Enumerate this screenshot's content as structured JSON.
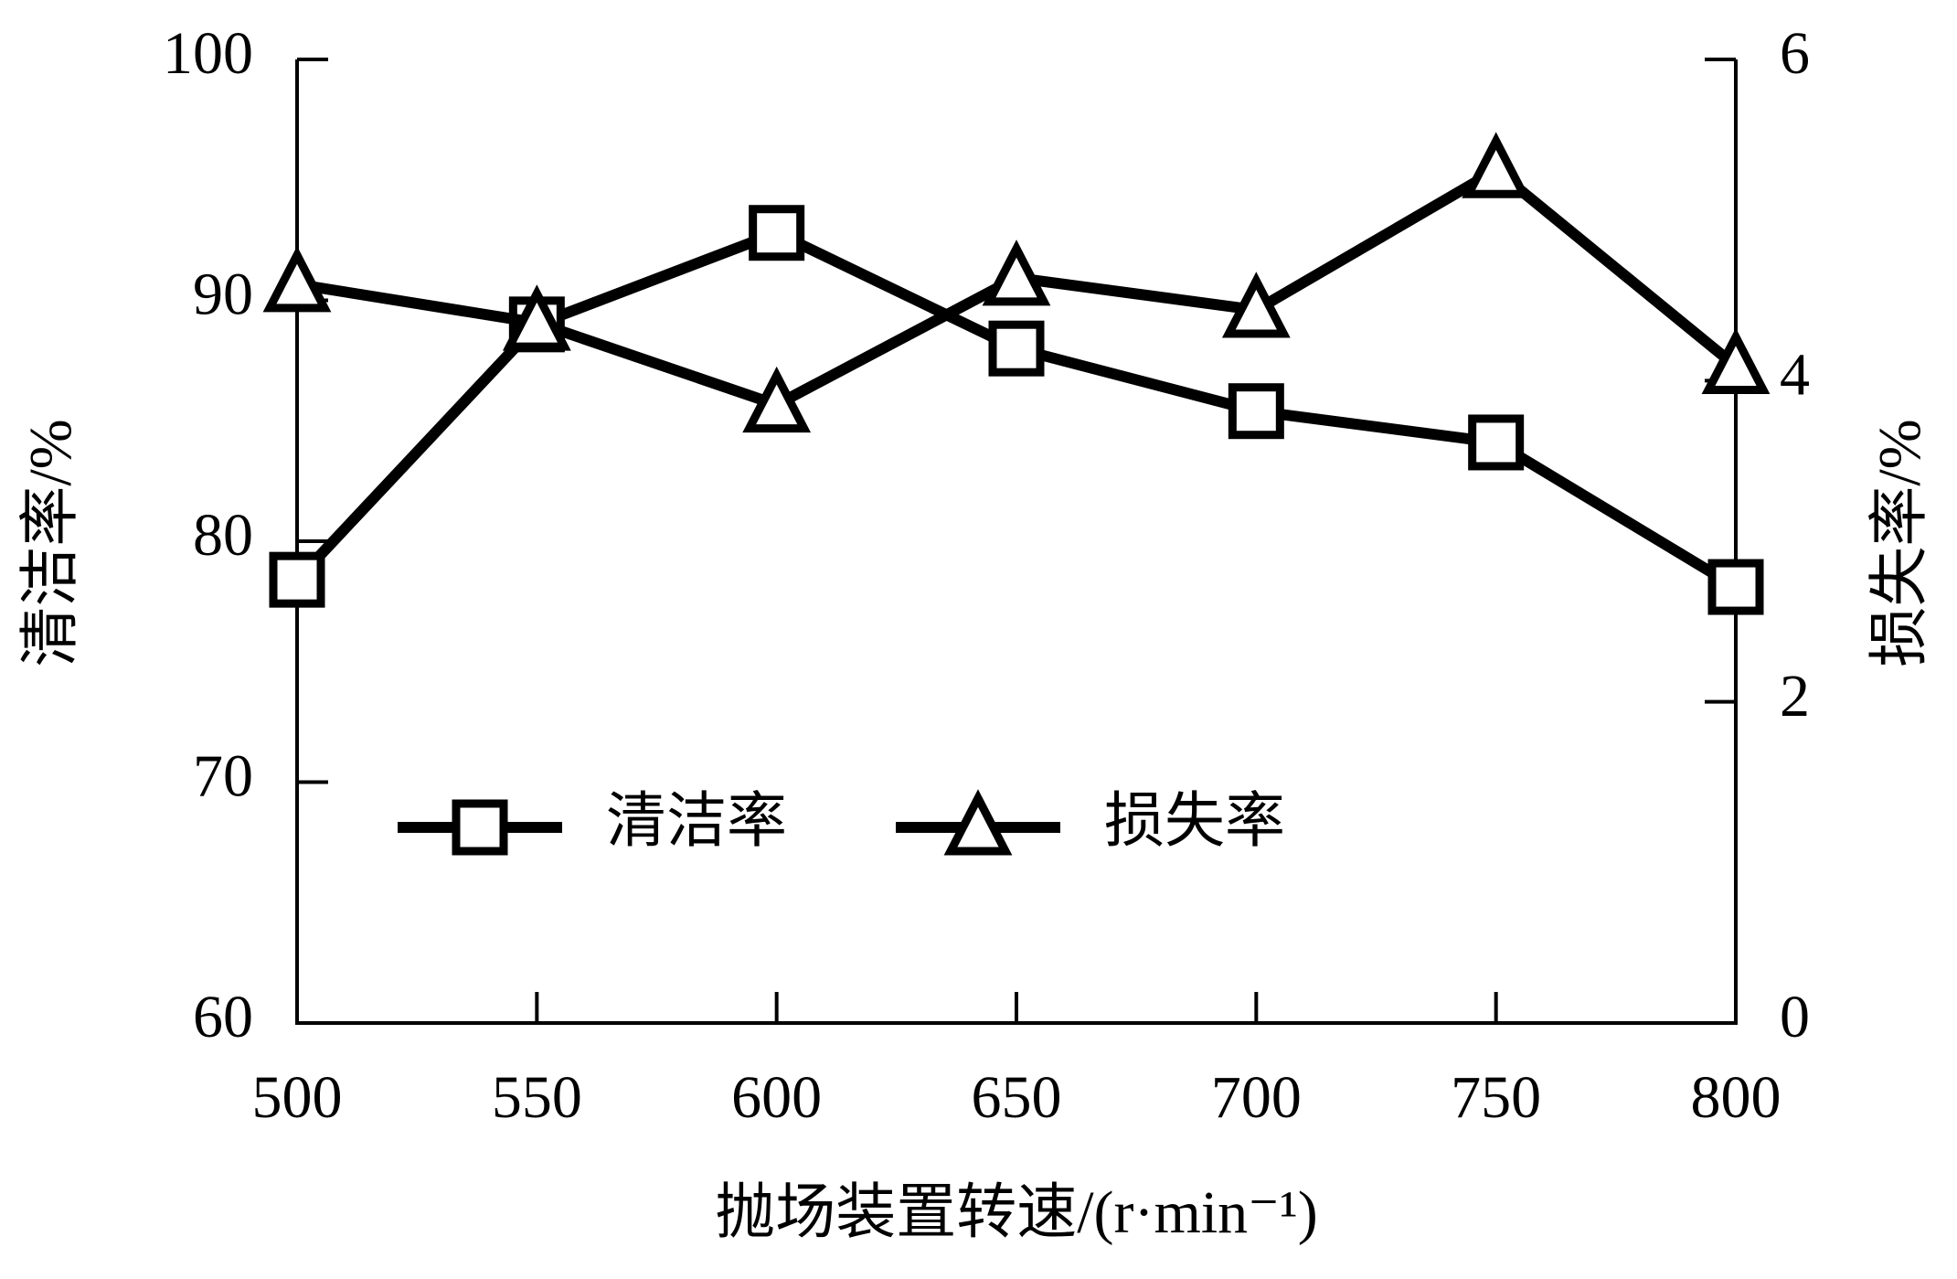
{
  "chart_data": {
    "type": "line",
    "xlabel": "抛场装置转速/(r·min⁻¹)",
    "ylabel": "清洁率/%",
    "y2label": "损失率/%",
    "x": [
      500,
      550,
      600,
      650,
      700,
      750,
      800
    ],
    "xlim": [
      500,
      800
    ],
    "xticks": [
      500,
      550,
      600,
      650,
      700,
      750,
      800
    ],
    "ylim": [
      60,
      100
    ],
    "yticks": [
      60,
      70,
      80,
      90,
      100
    ],
    "y2lim": [
      0,
      6
    ],
    "y2ticks": [
      0,
      2,
      4,
      6
    ],
    "series": [
      {
        "name": "清洁率",
        "color": "#000000",
        "marker": "square",
        "values": [
          78.4,
          89.0,
          92.8,
          88.0,
          85.4,
          84.1,
          78.1
        ]
      },
      {
        "name": "损失率",
        "color": "#000000",
        "marker": "triangle",
        "axis": "y2",
        "values": [
          4.6,
          4.36,
          3.85,
          4.64,
          4.44,
          5.31,
          4.09
        ]
      }
    ]
  }
}
